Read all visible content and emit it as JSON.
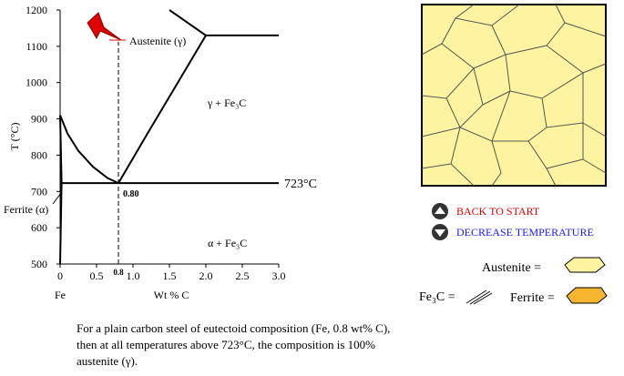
{
  "diagram": {
    "y_axis_label": "T (°C)",
    "x_axis_label": "Wt % C",
    "x_origin_label": "Fe",
    "ylim": [
      500,
      1200
    ],
    "yticks": [
      500,
      600,
      700,
      800,
      900,
      1000,
      1100,
      1200
    ],
    "xlim": [
      0,
      3
    ],
    "xticks": [
      0,
      0.5,
      {
        "value": 1,
        "label": "1.0"
      },
      1.5,
      {
        "value": 2,
        "label": "2.0"
      },
      2.5,
      {
        "value": 3,
        "label": "3.0"
      }
    ],
    "phase_lines": [
      [
        [
          0,
          910
        ],
        [
          0.1,
          860
        ],
        [
          0.25,
          812
        ],
        [
          0.45,
          768
        ],
        [
          0.65,
          737
        ],
        [
          0.8,
          723
        ]
      ],
      [
        [
          0.8,
          723
        ],
        [
          1.2,
          860
        ],
        [
          1.6,
          995
        ],
        [
          2.0,
          1130
        ]
      ],
      [
        [
          1.5,
          1200
        ],
        [
          2.0,
          1130
        ]
      ],
      [
        [
          2.0,
          1130
        ],
        [
          3.0,
          1130
        ]
      ],
      [
        [
          0,
          723
        ],
        [
          3.0,
          723
        ]
      ],
      [
        [
          0,
          910
        ],
        [
          0.02,
          723
        ],
        [
          0,
          500
        ]
      ]
    ],
    "composition_marker": {
      "value": 0.8,
      "label": "0.8",
      "top": 1112
    },
    "eutectoid_label": "0.80",
    "eutectoid_temperature_label": "723°C",
    "ferrite_label": "Ferrite (α)",
    "austenite_label": "Austenite (γ)",
    "region_labels": [
      "γ + Fe₃C",
      "α + Fe₃C"
    ]
  },
  "buttons": [
    "BACK TO START",
    "DECREASE TEMPERATURE"
  ],
  "legend": [
    "Austenite =",
    "Fe₃C =",
    "Ferrite ="
  ],
  "paragraph": [
    "For a plain carbon steel of eutectoid composition (Fe, 0.8 wt% C),",
    "then at all temperatures above 723°C, the composition is 100%",
    "austenite (γ)."
  ]
}
